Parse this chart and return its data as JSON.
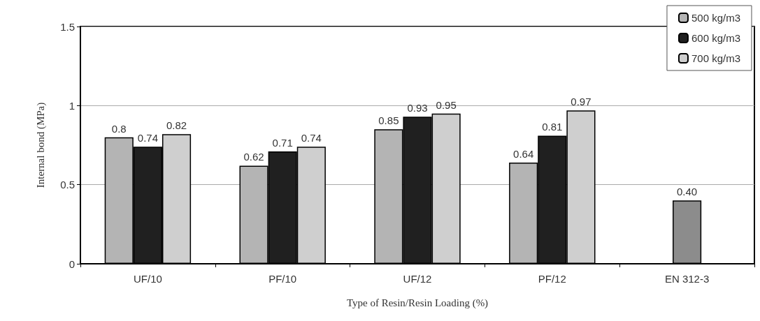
{
  "chart_data": {
    "type": "bar",
    "xlabel": "Type of Resin/Resin Loading (%)",
    "ylabel": "Internal bond (MPa)",
    "categories": [
      "UF/10",
      "PF/10",
      "UF/12",
      "PF/12",
      "EN 312-3"
    ],
    "series": [
      {
        "name": "500 kg/m3",
        "color": "#b4b4b4",
        "values": [
          0.8,
          0.62,
          0.85,
          0.64,
          null
        ],
        "value_labels": [
          "0.8",
          "0.62",
          "0.85",
          "0.64",
          null
        ]
      },
      {
        "name": "600 kg/m3",
        "color": "#202020",
        "colors": [
          "#202020",
          "#202020",
          "#202020",
          "#202020",
          "#8c8c8c"
        ],
        "values": [
          0.74,
          0.71,
          0.93,
          0.81,
          0.4
        ],
        "value_labels": [
          "0.74",
          "0.71",
          "0.93",
          "0.81",
          "0.40"
        ]
      },
      {
        "name": "700 kg/m3",
        "color": "#cfcfcf",
        "values": [
          0.82,
          0.74,
          0.95,
          0.97,
          null
        ],
        "value_labels": [
          "0.82",
          "0.74",
          "0.95",
          "0.97",
          null
        ]
      }
    ],
    "ylim": [
      0,
      1.5
    ],
    "yticks": [
      0,
      0.5,
      1,
      1.5
    ],
    "grid": "y",
    "legend": "top right"
  }
}
